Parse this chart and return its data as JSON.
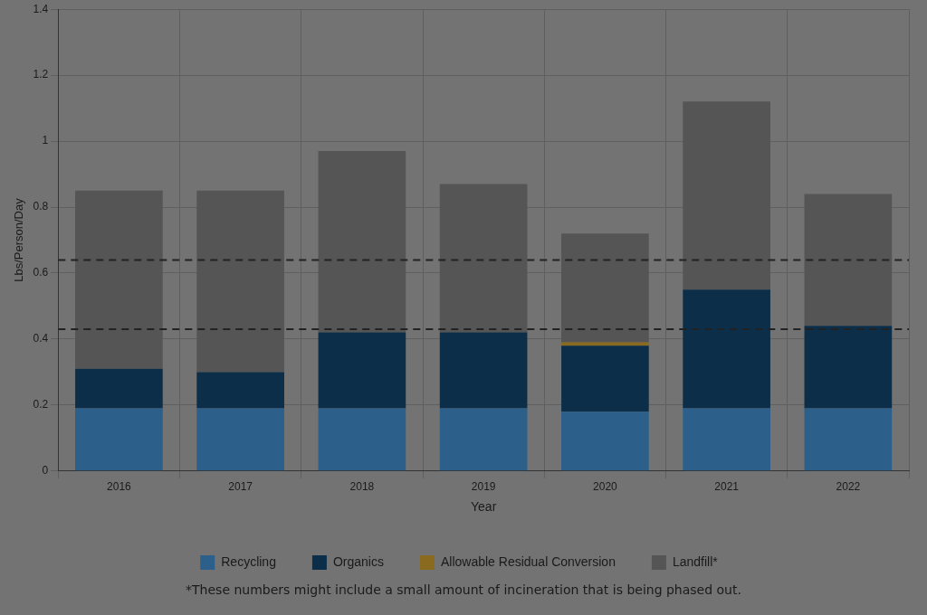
{
  "chart_data": {
    "type": "bar",
    "stacked": true,
    "xlabel": "Year",
    "ylabel": "Lbs/Person/Day",
    "categories": [
      "2016",
      "2017",
      "2018",
      "2019",
      "2020",
      "2021",
      "2022"
    ],
    "series": [
      {
        "name": "Recycling",
        "color": "#2c5f8a",
        "values": [
          0.19,
          0.19,
          0.19,
          0.19,
          0.18,
          0.19,
          0.19
        ]
      },
      {
        "name": "Organics",
        "color": "#0d2e48",
        "values": [
          0.12,
          0.11,
          0.23,
          0.23,
          0.2,
          0.36,
          0.25
        ]
      },
      {
        "name": "Allowable Residual Conversion",
        "color": "#8a6a1e",
        "values": [
          0,
          0,
          0,
          0,
          0.01,
          0,
          0
        ]
      },
      {
        "name": "Landfill*",
        "color": "#555555",
        "values": [
          0.54,
          0.55,
          0.55,
          0.45,
          0.33,
          0.57,
          0.4
        ]
      }
    ],
    "ylim": [
      0,
      1.4
    ],
    "yticks": [
      0,
      0.2,
      0.4,
      0.6,
      0.8,
      1,
      1.2,
      1.4
    ],
    "ref_lines": [
      {
        "axis": "y",
        "value": 0.64,
        "color": "#222222",
        "line_style": "dashed"
      },
      {
        "axis": "y",
        "value": 0.43,
        "color": "#222222",
        "line_style": "dashed"
      }
    ],
    "grid": true,
    "legend": "bottom",
    "annotations": [
      "*These numbers might include a small amount of incineration that is being phased out."
    ]
  }
}
